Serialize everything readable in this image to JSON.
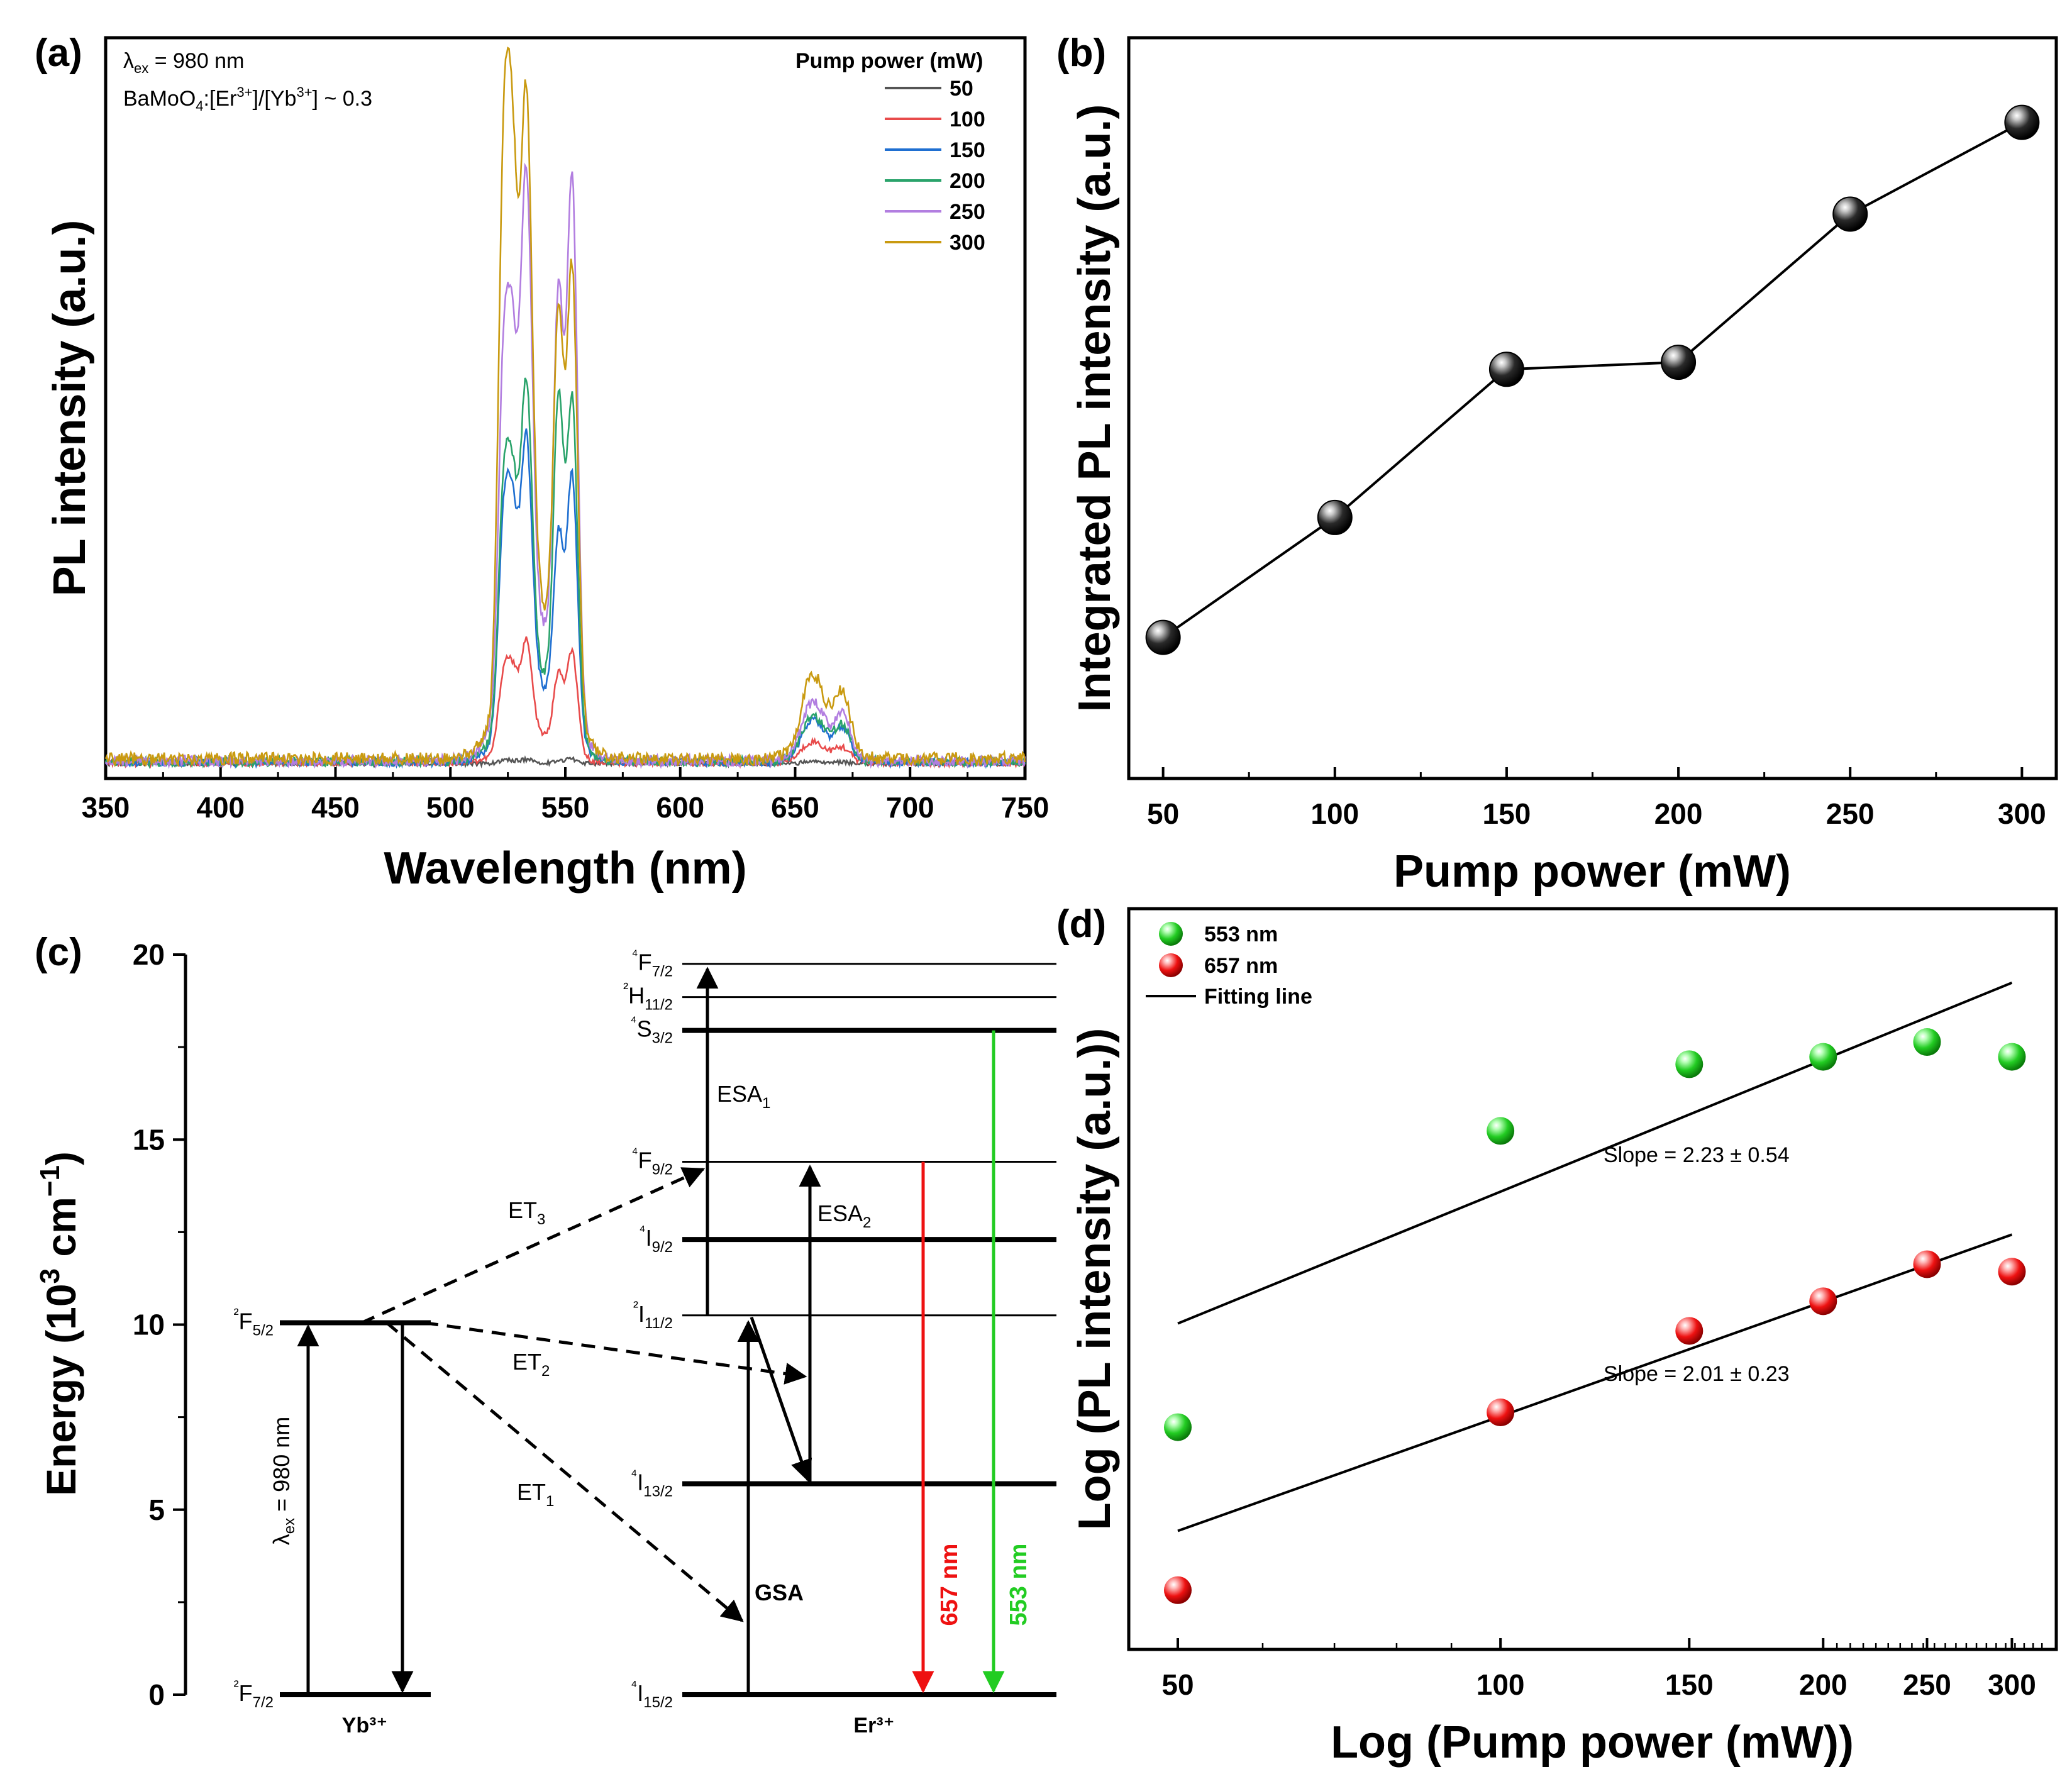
{
  "chart_data": [
    {
      "panel": "(a)",
      "type": "line",
      "xlabel": "Wavelength (nm)",
      "ylabel": "PL intensity (a.u.)",
      "xlim": [
        350,
        750
      ],
      "xticks": [
        "350",
        "400",
        "450",
        "500",
        "550",
        "600",
        "650",
        "700",
        "750"
      ],
      "grid": false,
      "annotations": [
        "λex = 980 nm",
        "BaMoO4:[Er3+]/[Yb3+] ~ 0.3"
      ],
      "legend": {
        "title": "Pump power (mW)",
        "position": "top-right"
      },
      "peaks": {
        "x": [
          523,
          527,
          533,
          547,
          553,
          657,
          671
        ],
        "description_units": "nm"
      },
      "series": [
        {
          "name": "50",
          "color": "#555555",
          "peak_heights": [
            0.004,
            0.004,
            0.006,
            0.004,
            0.008,
            0.002,
            0.002
          ],
          "baseline": 0.005
        },
        {
          "name": "100",
          "color": "#e84b4b",
          "peak_heights": [
            0.13,
            0.12,
            0.18,
            0.13,
            0.19,
            0.025,
            0.02
          ],
          "baseline": 0.006
        },
        {
          "name": "150",
          "color": "#1f6fd1",
          "peak_heights": [
            0.36,
            0.33,
            0.48,
            0.33,
            0.49,
            0.05,
            0.045
          ],
          "baseline": 0.007
        },
        {
          "name": "200",
          "color": "#2aa36b",
          "peak_heights": [
            0.4,
            0.36,
            0.56,
            0.57,
            0.62,
            0.055,
            0.05
          ],
          "baseline": 0.008
        },
        {
          "name": "250",
          "color": "#b27ee0",
          "peak_heights": [
            0.58,
            0.53,
            0.87,
            0.69,
            1.0,
            0.07,
            0.065
          ],
          "baseline": 0.009
        },
        {
          "name": "300",
          "color": "#c99a10",
          "peak_heights": [
            0.91,
            0.82,
            0.98,
            0.63,
            0.82,
            0.1,
            0.09
          ],
          "baseline": 0.012
        }
      ]
    },
    {
      "panel": "(b)",
      "type": "line",
      "xlabel": "Pump power (mW)",
      "ylabel": "Integrated PL intensity (a.u.)",
      "x": [
        50,
        100,
        150,
        200,
        250,
        300
      ],
      "xticks": [
        "50",
        "100",
        "150",
        "200",
        "250",
        "300"
      ],
      "y": [
        0.2,
        0.37,
        0.58,
        0.59,
        0.8,
        0.93
      ],
      "xlim": [
        40,
        310
      ],
      "ylim": [
        0,
        1.05
      ],
      "marker": "sphere",
      "color": "#000000"
    },
    {
      "panel": "(c)",
      "type": "diagram",
      "ylabel": "Energy (10³ cm⁻¹)",
      "ylim": [
        0,
        20
      ],
      "yticks": [
        "0",
        "5",
        "10",
        "15",
        "20"
      ],
      "yb_label": "Yb³⁺",
      "er_label": "Er³⁺",
      "yb_levels": [
        {
          "label": "²F7/2",
          "value": 0
        },
        {
          "label": "²F5/2",
          "value": 10.05
        }
      ],
      "er_levels": [
        {
          "label": "⁴F7/2",
          "value": 19.75,
          "bold": false
        },
        {
          "label": "²H11/2",
          "value": 18.85,
          "bold": false
        },
        {
          "label": "⁴S3/2",
          "value": 17.95,
          "bold": true
        },
        {
          "label": "⁴F9/2",
          "value": 14.4,
          "bold": false
        },
        {
          "label": "⁴I9/2",
          "value": 12.3,
          "bold": true
        },
        {
          "label": "²I11/2",
          "value": 10.25,
          "bold": false
        },
        {
          "label": "⁴I13/2",
          "value": 5.7,
          "bold": true
        },
        {
          "label": "⁴I15/2",
          "value": 0,
          "bold": true
        }
      ],
      "transitions": [
        "λex = 980 nm",
        "ET1",
        "ET2",
        "ET3",
        "GSA",
        "ESA1",
        "ESA2",
        "657 nm",
        "553 nm"
      ],
      "colors": {
        "red": "#ee1111",
        "green": "#22cc22"
      }
    },
    {
      "panel": "(d)",
      "type": "scatter",
      "xlabel": "Log (Pump power (mW))",
      "ylabel": "Log (PL intensity (a.u.))",
      "xscale": "log",
      "xlim": [
        45,
        330
      ],
      "xticks": [
        "50",
        "100",
        "150",
        "200",
        "250",
        "300"
      ],
      "ylim": [
        0,
        1
      ],
      "legend": {
        "position": "top-left",
        "entries": [
          "553 nm",
          "657 nm",
          "Fitting line"
        ]
      },
      "series": [
        {
          "name": "553 nm",
          "color": "#22cc22",
          "x": [
            50,
            100,
            150,
            200,
            250,
            300
          ],
          "y": [
            0.3,
            0.7,
            0.79,
            0.8,
            0.82,
            0.8
          ]
        },
        {
          "name": "657 nm",
          "color": "#ee1111",
          "x": [
            50,
            100,
            150,
            200,
            250,
            300
          ],
          "y": [
            0.08,
            0.32,
            0.43,
            0.47,
            0.52,
            0.51
          ]
        }
      ],
      "fit_lines": [
        {
          "name": "Fitting line",
          "x": [
            50,
            300
          ],
          "y": [
            0.44,
            0.9
          ],
          "slope_label": "Slope = 2.23 ±  0.54"
        },
        {
          "name": "Fitting line",
          "x": [
            50,
            300
          ],
          "y": [
            0.16,
            0.56
          ],
          "slope_label": "Slope = 2.01 ±  0.23"
        }
      ]
    }
  ]
}
